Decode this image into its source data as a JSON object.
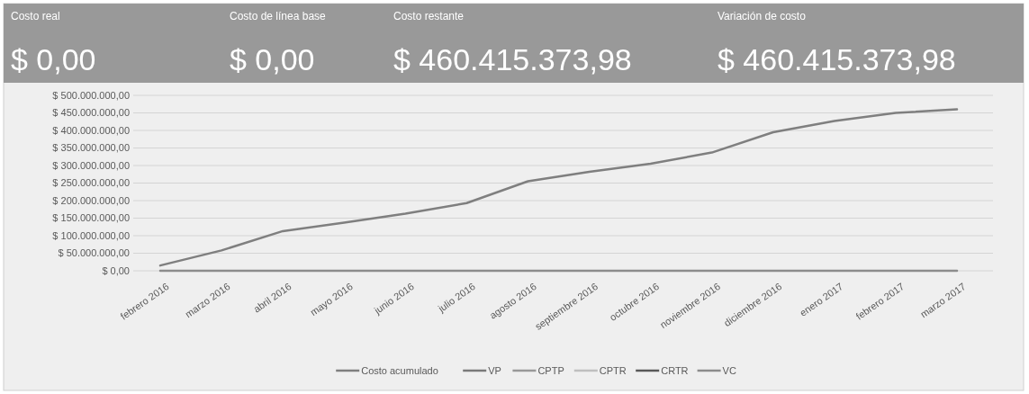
{
  "chart_data": {
    "type": "line",
    "annotations": [
      "Costo real",
      "$ 0,00",
      "Costo de línea base",
      "$ 0,00",
      "Costo restante",
      "$ 460.415.373,98",
      "Variación de costo",
      "$ 460.415.373,98"
    ],
    "categories": [
      "febrero 2016",
      "marzo 2016",
      "abril 2016",
      "mayo 2016",
      "junio 2016",
      "julio 2016",
      "agosto 2016",
      "septiembre 2016",
      "octubre 2016",
      "noviembre 2016",
      "diciembre 2016",
      "enero 2017",
      "febrero 2017",
      "marzo 2017"
    ],
    "series": [
      {
        "name": "Costo acumulado",
        "color": "#7f7f7f",
        "values": [
          15000000,
          58000000,
          113000000,
          137000000,
          163000000,
          193000000,
          255000000,
          282000000,
          305000000,
          337000000,
          395000000,
          427000000,
          450000000,
          460000000
        ]
      },
      {
        "name": "VP",
        "color": "#7a7a7a",
        "values": [
          null,
          null,
          null,
          null,
          null,
          null,
          null,
          null,
          null,
          null,
          null,
          null,
          null,
          null
        ]
      },
      {
        "name": "CPTP",
        "color": "#999999",
        "values": [
          null,
          null,
          null,
          null,
          null,
          null,
          null,
          null,
          null,
          null,
          null,
          null,
          null,
          null
        ]
      },
      {
        "name": "CPTR",
        "color": "#bfbfbf",
        "values": [
          null,
          null,
          null,
          null,
          null,
          null,
          null,
          null,
          null,
          null,
          null,
          null,
          null,
          null
        ]
      },
      {
        "name": "CRTR",
        "color": "#595959",
        "values": [
          null,
          null,
          null,
          null,
          null,
          null,
          null,
          null,
          null,
          null,
          null,
          null,
          null,
          null
        ]
      },
      {
        "name": "VC",
        "color": "#8c8c8c",
        "values": [
          0,
          0,
          0,
          0,
          0,
          0,
          0,
          0,
          0,
          0,
          0,
          0,
          0,
          0
        ]
      }
    ],
    "ylim": [
      0,
      500000000
    ],
    "yticks": [
      {
        "value": 0,
        "label": "$ 0,00"
      },
      {
        "value": 50000000,
        "label": "$ 50.000.000,00"
      },
      {
        "value": 100000000,
        "label": "$ 100.000.000,00"
      },
      {
        "value": 150000000,
        "label": "$ 150.000.000,00"
      },
      {
        "value": 200000000,
        "label": "$ 200.000.000,00"
      },
      {
        "value": 250000000,
        "label": "$ 250.000.000,00"
      },
      {
        "value": 300000000,
        "label": "$ 300.000.000,00"
      },
      {
        "value": 350000000,
        "label": "$ 350.000.000,00"
      },
      {
        "value": 400000000,
        "label": "$ 400.000.000,00"
      },
      {
        "value": 450000000,
        "label": "$ 450.000.000,00"
      },
      {
        "value": 500000000,
        "label": "$ 500.000.000,00"
      }
    ],
    "grid": "y",
    "legend": "bottom",
    "line_style": "solid"
  }
}
